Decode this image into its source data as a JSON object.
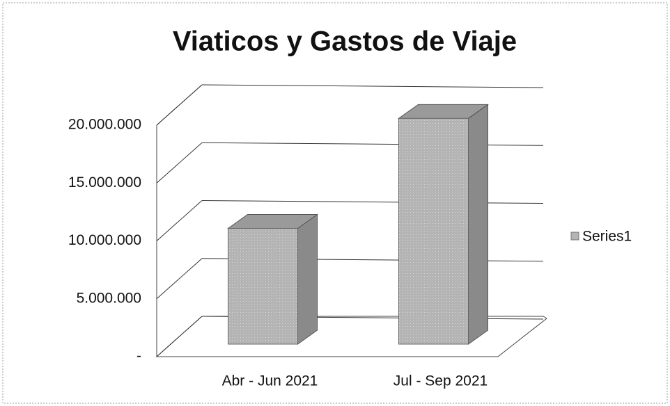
{
  "chart_data": {
    "type": "bar3d",
    "title": "Viaticos y Gastos de Viaje",
    "categories": [
      "Abr - Jun 2021",
      "Jul - Sep 2021"
    ],
    "series": [
      {
        "name": "Series1",
        "color": "#b4b4b4",
        "values": [
          10000000,
          19500000
        ]
      }
    ],
    "ylim": [
      0,
      20000000
    ],
    "yticks": [
      {
        "value": 0,
        "label": "-"
      },
      {
        "value": 5000000,
        "label": "5.000.000"
      },
      {
        "value": 10000000,
        "label": "10.000.000"
      },
      {
        "value": 15000000,
        "label": "15.000.000"
      },
      {
        "value": 20000000,
        "label": "20.000.000"
      }
    ],
    "grid": true,
    "legend": "right"
  }
}
